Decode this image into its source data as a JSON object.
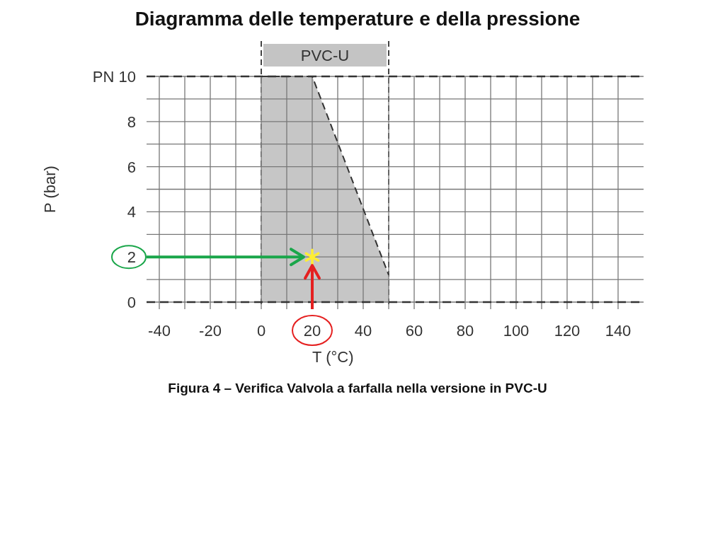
{
  "chart_data": {
    "type": "area",
    "title": "Diagramma delle temperature e della pressione",
    "xlabel": "T (°C)",
    "ylabel": "P (bar)",
    "xlim": [
      -45,
      150
    ],
    "ylim": [
      0,
      10
    ],
    "xticks": [
      -40,
      -20,
      0,
      20,
      40,
      60,
      80,
      100,
      120,
      140
    ],
    "yticks": [
      0,
      2,
      4,
      6,
      8,
      {
        "value": 10,
        "label": "PN 10"
      }
    ],
    "grid": true,
    "ref_lines": [
      {
        "axis": "x",
        "value": 0,
        "line_style": "dashed",
        "color": "#444444"
      },
      {
        "axis": "x",
        "value": 50,
        "line_style": "dashed",
        "color": "#444444"
      }
    ],
    "series": [
      {
        "color": "#c0c0c0",
        "x": [
          0,
          20,
          50
        ],
        "values": [
          10,
          10,
          1.2
        ],
        "line_style": "dashed"
      },
      {
        "type": "scatter",
        "color": "#ffee33",
        "x": [
          20
        ],
        "values": [
          2
        ],
        "marker": "cross"
      }
    ],
    "annotations": [
      "PVC-U",
      "Figura 4 – Verifica Valvola a farfalla nella versione in PVC-U"
    ]
  }
}
